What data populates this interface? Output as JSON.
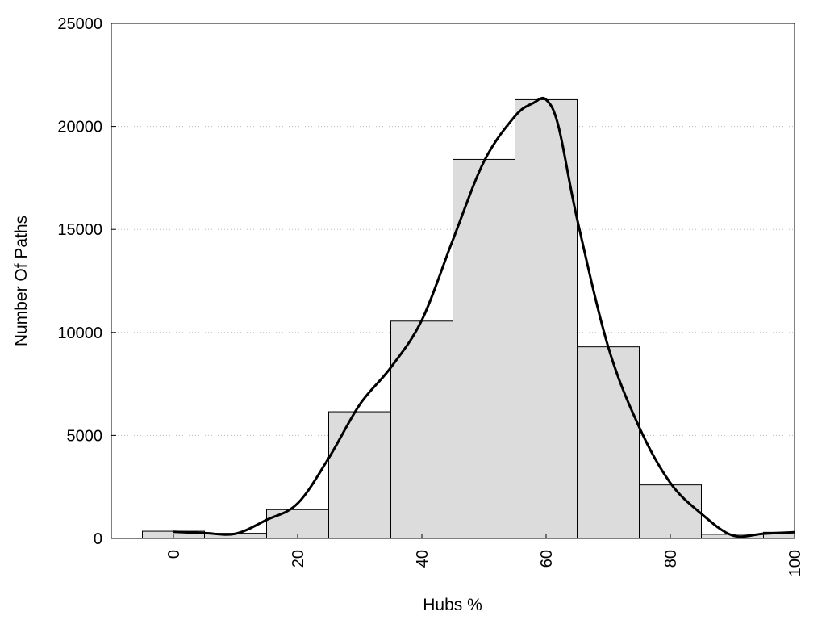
{
  "chart_data": {
    "type": "bar",
    "xlabel": "Hubs %",
    "ylabel": "Number Of Paths",
    "xlim": [
      -10,
      100
    ],
    "ylim": [
      0,
      25000
    ],
    "x_ticks": [
      0,
      20,
      40,
      60,
      80,
      100
    ],
    "y_ticks": [
      0,
      5000,
      10000,
      15000,
      20000,
      25000
    ],
    "grid": "horizontal dotted",
    "bar_fill": "#dcdcdc",
    "bar_stroke": "#000000",
    "line_color": "#000000",
    "bins": [
      {
        "from": -5,
        "to": 5,
        "value": 350
      },
      {
        "from": 5,
        "to": 15,
        "value": 250
      },
      {
        "from": 15,
        "to": 25,
        "value": 1400
      },
      {
        "from": 25,
        "to": 35,
        "value": 6150
      },
      {
        "from": 35,
        "to": 45,
        "value": 10550
      },
      {
        "from": 45,
        "to": 55,
        "value": 18400
      },
      {
        "from": 55,
        "to": 65,
        "value": 21300
      },
      {
        "from": 65,
        "to": 75,
        "value": 9300
      },
      {
        "from": 75,
        "to": 85,
        "value": 2600
      },
      {
        "from": 85,
        "to": 95,
        "value": 200
      },
      {
        "from": 95,
        "to": 100,
        "value": 300
      }
    ],
    "curve": {
      "x": [
        0,
        5,
        10,
        15,
        20,
        25,
        30,
        35,
        40,
        45,
        50,
        55,
        58,
        60,
        62,
        65,
        70,
        75,
        80,
        85,
        90,
        95,
        100
      ],
      "y": [
        320,
        260,
        230,
        900,
        1700,
        3900,
        6500,
        8300,
        10600,
        14500,
        18300,
        20500,
        21150,
        21300,
        20000,
        15500,
        9300,
        5400,
        2700,
        1200,
        150,
        230,
        300
      ]
    }
  }
}
